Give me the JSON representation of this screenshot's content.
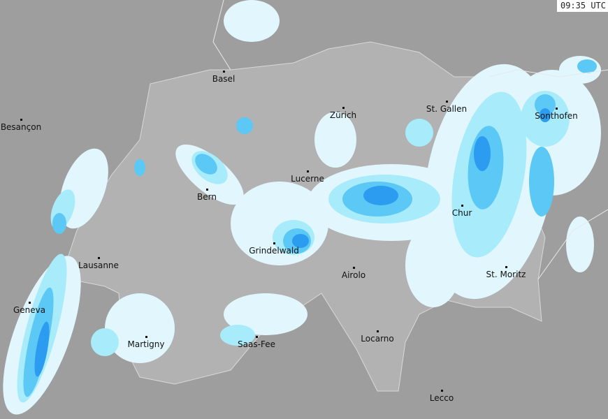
{
  "timestamp": "09:35 UTC",
  "colors": {
    "background": "#9e9e9e",
    "country": "#b2b2b2",
    "rain_light": "#e2f7fd",
    "rain_mid": "#a8ecfb",
    "rain_moderate": "#5cc8f5",
    "rain_heavy": "#2b9cf0"
  },
  "cities": [
    {
      "name": "Basel"
    },
    {
      "name": "Besançon"
    },
    {
      "name": "Zürich"
    },
    {
      "name": "St. Gallen"
    },
    {
      "name": "Sonthofen"
    },
    {
      "name": "Lucerne"
    },
    {
      "name": "Bern"
    },
    {
      "name": "Chur"
    },
    {
      "name": "Lausanne"
    },
    {
      "name": "Grindelwald"
    },
    {
      "name": "Airolo"
    },
    {
      "name": "St. Moritz"
    },
    {
      "name": "Geneva"
    },
    {
      "name": "Martigny"
    },
    {
      "name": "Saas-Fee"
    },
    {
      "name": "Locarno"
    },
    {
      "name": "Lecco"
    }
  ]
}
